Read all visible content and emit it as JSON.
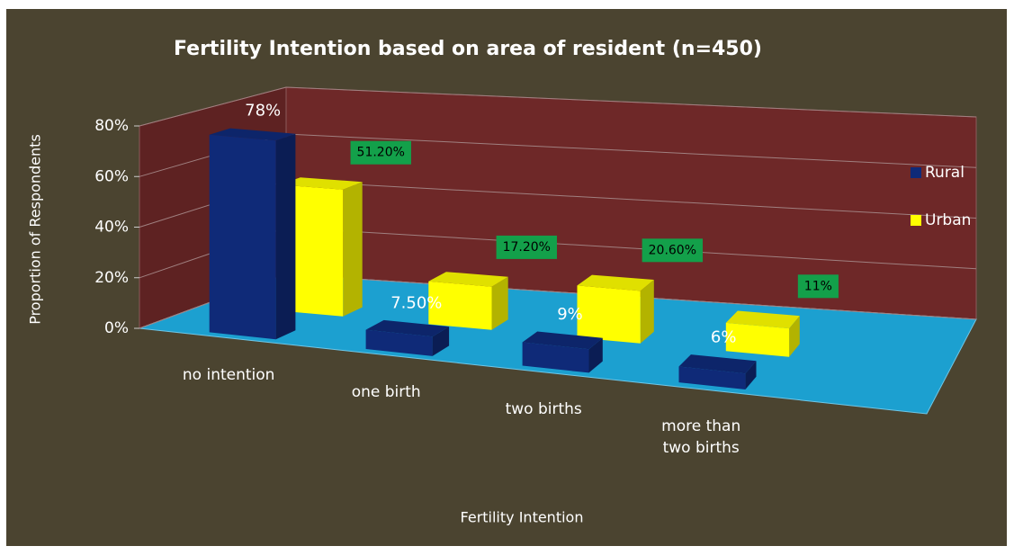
{
  "chart_data": {
    "type": "bar3d",
    "title": "Fertility Intention based on area of resident (n=450)",
    "x_label": "Fertility Intention",
    "y_label": "Proportion of Respondents",
    "categories": [
      "no intention",
      "one birth",
      "two births",
      "more than two births"
    ],
    "series": [
      {
        "name": "Rural",
        "color": "#0f2a78",
        "values": [
          78,
          7.5,
          9,
          6
        ],
        "value_labels": [
          "78%",
          "7.50%",
          "9%",
          "6%"
        ]
      },
      {
        "name": "Urban",
        "color": "#ffff00",
        "values": [
          51.2,
          17.2,
          20.6,
          11
        ],
        "value_labels": [
          "51.20%",
          "17.20%",
          "20.60%",
          "11%"
        ]
      }
    ],
    "ylim": [
      0,
      80
    ],
    "yticks": [
      {
        "value": 0,
        "label": "0%"
      },
      {
        "value": 20,
        "label": "20%"
      },
      {
        "value": 40,
        "label": "40%"
      },
      {
        "value": 60,
        "label": "60%"
      },
      {
        "value": 80,
        "label": "80%"
      }
    ],
    "grid": true,
    "legend": "right"
  }
}
